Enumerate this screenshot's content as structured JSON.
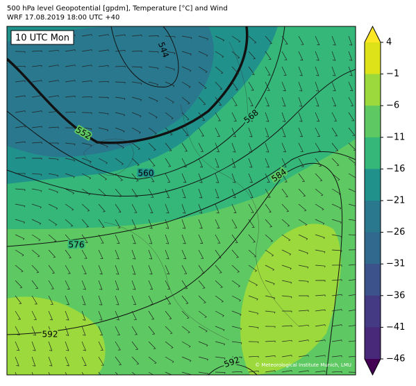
{
  "header": {
    "line1": "500 hPa level Geopotential [gpdm], Temperature [°C] and Wind",
    "line2": "WRF 17.08.2019 18:00 UTC +40"
  },
  "map": {
    "time_label": "10 UTC Mon",
    "contour_labels": [
      "544",
      "552",
      "560",
      "568",
      "576",
      "584",
      "592",
      "592"
    ],
    "credit": "© Meteorological Institute Munich, LMU"
  },
  "colorbar": {
    "ticks": [
      "4",
      "−1",
      "−6",
      "−11",
      "−16",
      "−21",
      "−26",
      "−31",
      "−36",
      "−41",
      "−46"
    ],
    "colors": [
      "#fde725",
      "#dde318",
      "#9bd93c",
      "#5ec962",
      "#35b779",
      "#21918c",
      "#2a788e",
      "#31688e",
      "#3b528b",
      "#443983",
      "#482878",
      "#440154"
    ]
  }
}
